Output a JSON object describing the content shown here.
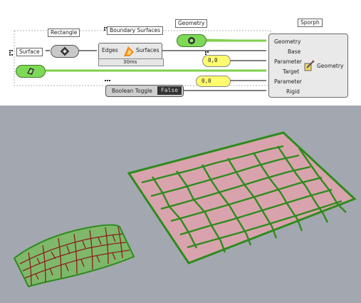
{
  "grasshopper": {
    "rectangle_label": "Rectangle",
    "surface_label": "Surface",
    "boundary_label": "Boundary Surfaces",
    "boundary_inputs": {
      "edges": "Edges",
      "surfaces": "Surfaces"
    },
    "boundary_time": "30ms",
    "geometry_label": "Geometry",
    "sporph": {
      "title": "Sporph",
      "inputs": [
        "Geometry",
        "Base",
        "Parameter",
        "Target",
        "Parameter",
        "Rigid"
      ],
      "output": "Geometry"
    },
    "param1_value": "0,0",
    "param2_value": "0,0",
    "toggle_label": "Boolean Toggle",
    "toggle_value": "False"
  },
  "colors": {
    "wire_green": "#7fd04b",
    "cell_fill": "#d9a3ad",
    "cell_edge": "#2e8b1e",
    "morph_fill": "#7fb86a",
    "morph_edge": "#8a1f1f",
    "viewport_bg": "#a3a8b0"
  }
}
